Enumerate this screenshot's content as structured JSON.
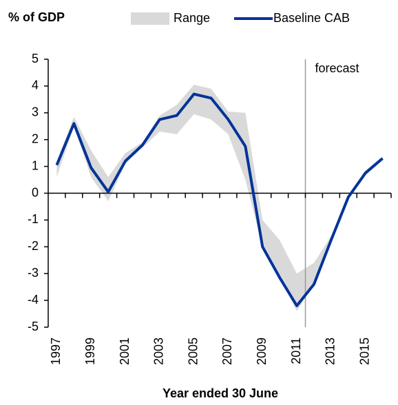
{
  "chart_data": {
    "type": "line",
    "y_label": "% of GDP",
    "x_label": "Year ended 30 June",
    "annotation": "forecast",
    "categories": [
      "1997",
      null,
      "1999",
      null,
      "2001",
      null,
      "2003",
      null,
      "2005",
      null,
      "2007",
      null,
      "2009",
      null,
      "2011",
      null,
      "2013",
      null,
      "2015",
      null
    ],
    "range": {
      "name": "Range",
      "color": "#d9d9d9",
      "low": [
        0.6,
        2.5,
        0.6,
        -0.3,
        1.1,
        1.7,
        2.3,
        2.2,
        2.95,
        2.75,
        2.2,
        0.5,
        -2.0,
        -3.15,
        -4.4,
        -3.4,
        -1.8,
        -0.2,
        0.7,
        1.3
      ],
      "high": [
        1.2,
        2.85,
        1.6,
        0.6,
        1.5,
        1.9,
        2.9,
        3.3,
        4.05,
        3.9,
        3.05,
        3.0,
        -1.0,
        -1.75,
        -3.0,
        -2.6,
        -1.6,
        -0.1,
        0.85,
        1.35
      ]
    },
    "series": [
      {
        "name": "Baseline CAB",
        "color": "#003399",
        "values": [
          1.05,
          2.6,
          0.95,
          0.05,
          1.2,
          1.8,
          2.75,
          2.9,
          3.7,
          3.55,
          2.75,
          1.75,
          -2.0,
          -3.15,
          -4.2,
          -3.4,
          -1.75,
          -0.15,
          0.75,
          1.3
        ]
      }
    ],
    "ylim": [
      -5,
      5
    ],
    "yticks": [
      5,
      4,
      3,
      2,
      1,
      0,
      -1,
      -2,
      -3,
      -4,
      -5
    ]
  }
}
